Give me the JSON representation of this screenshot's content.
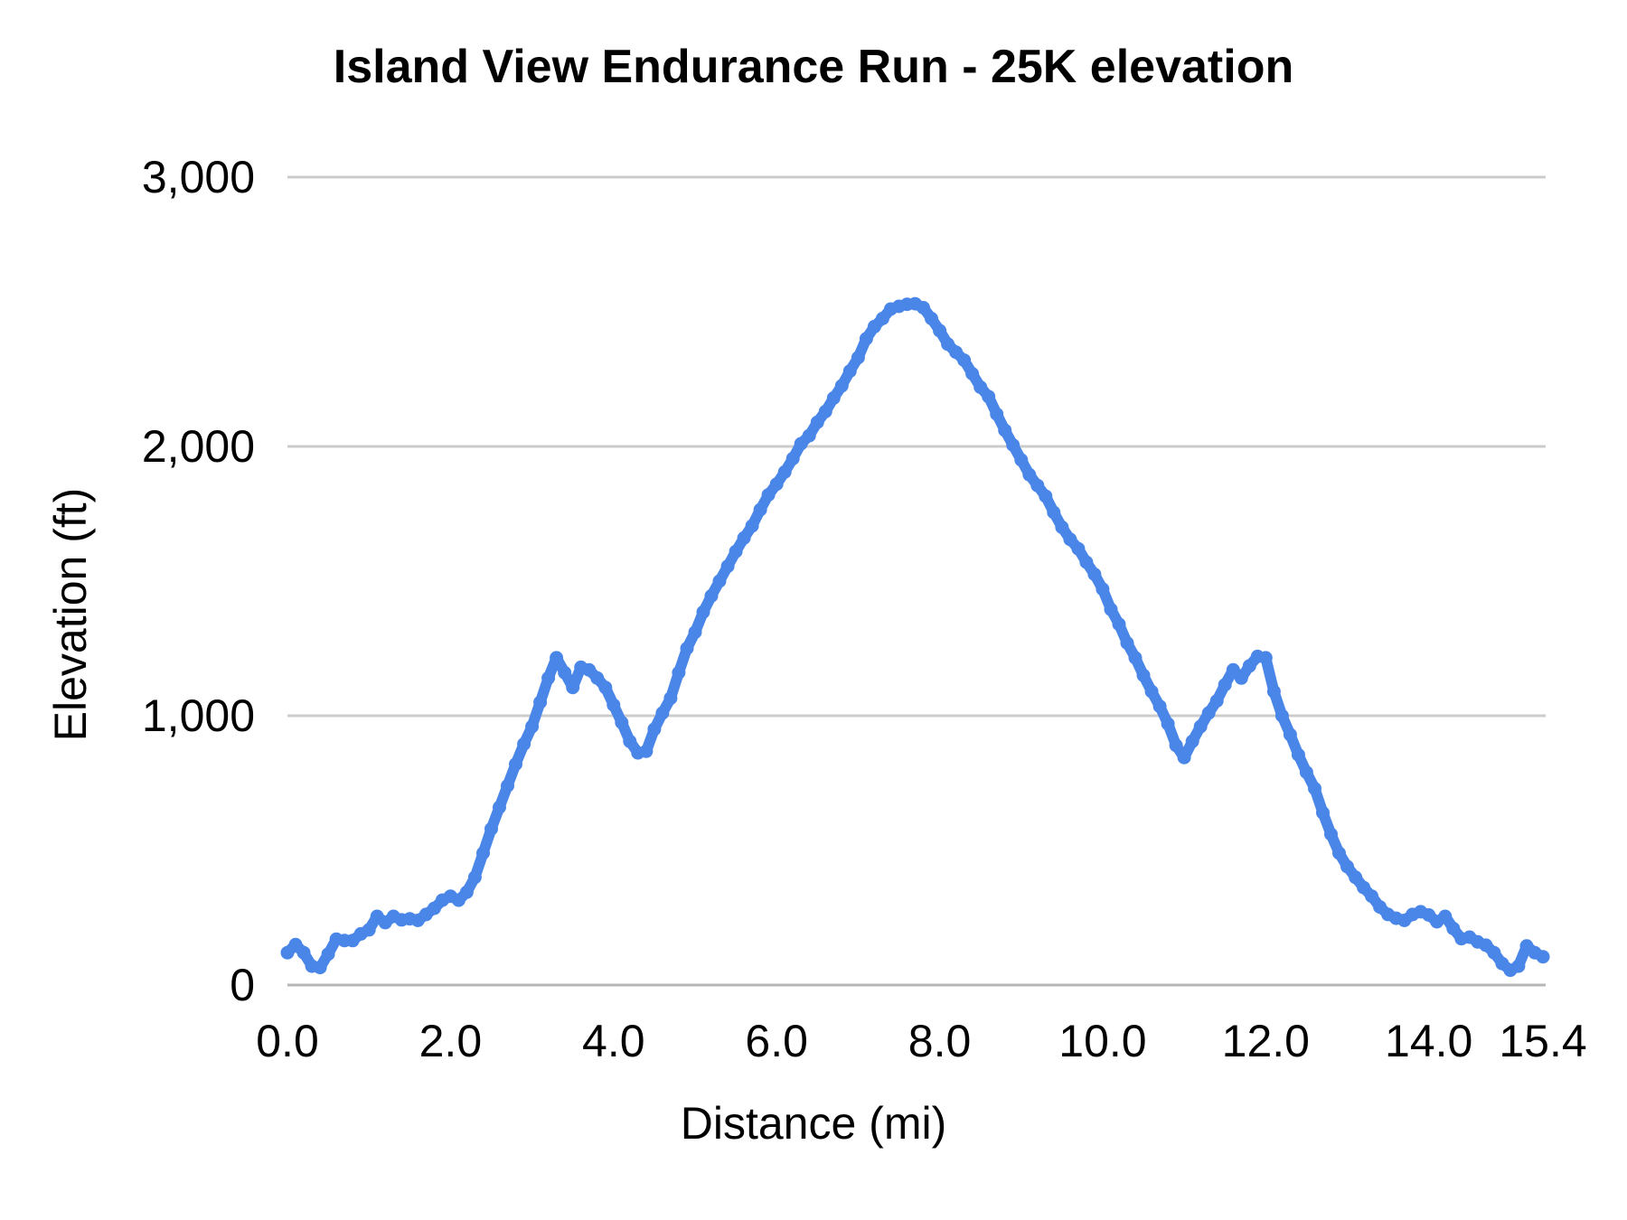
{
  "chart": {
    "title": "Island View Endurance Run - 25K elevation",
    "xlabel": "Distance (mi)",
    "ylabel": "Elevation (ft)"
  },
  "chart_data": {
    "type": "line",
    "title": "Island View Endurance Run - 25K elevation",
    "xlabel": "Distance (mi)",
    "ylabel": "Elevation (ft)",
    "xlim": [
      0,
      15.4
    ],
    "ylim": [
      0,
      3000
    ],
    "x_ticks": [
      0,
      2,
      4,
      6,
      8,
      10,
      12,
      14,
      15.4
    ],
    "x_tick_labels": [
      "0.0",
      "2.0",
      "4.0",
      "6.0",
      "8.0",
      "10.0",
      "12.0",
      "14.0",
      "15.4"
    ],
    "y_ticks": [
      0,
      1000,
      2000,
      3000
    ],
    "y_tick_labels": [
      "0",
      "1,000",
      "2,000",
      "3,000"
    ],
    "grid": "horizontal",
    "grid_color": "#cccccc",
    "axis_color": "#b7b7b7",
    "legend": "none",
    "series": [
      {
        "name": "Elevation",
        "color": "#4a86e8",
        "marker": "circle",
        "x_start": 0,
        "x_step": 0.1,
        "values": [
          120,
          150,
          120,
          70,
          65,
          115,
          170,
          165,
          165,
          190,
          205,
          255,
          232,
          255,
          242,
          246,
          240,
          262,
          285,
          315,
          330,
          315,
          345,
          400,
          490,
          580,
          660,
          740,
          820,
          895,
          960,
          1050,
          1140,
          1215,
          1160,
          1105,
          1180,
          1170,
          1140,
          1105,
          1040,
          975,
          905,
          862,
          868,
          950,
          1010,
          1065,
          1160,
          1250,
          1310,
          1385,
          1445,
          1500,
          1555,
          1610,
          1660,
          1705,
          1765,
          1820,
          1860,
          1905,
          1955,
          2010,
          2040,
          2090,
          2130,
          2180,
          2225,
          2280,
          2330,
          2400,
          2445,
          2475,
          2510,
          2520,
          2528,
          2530,
          2515,
          2475,
          2430,
          2380,
          2350,
          2320,
          2270,
          2220,
          2185,
          2120,
          2060,
          2005,
          1950,
          1895,
          1855,
          1815,
          1755,
          1700,
          1655,
          1620,
          1570,
          1525,
          1470,
          1395,
          1340,
          1270,
          1215,
          1150,
          1090,
          1035,
          970,
          890,
          845,
          905,
          960,
          1010,
          1055,
          1115,
          1170,
          1140,
          1185,
          1220,
          1215,
          1090,
          1000,
          930,
          855,
          790,
          730,
          640,
          560,
          490,
          440,
          400,
          362,
          330,
          290,
          262,
          248,
          240,
          262,
          272,
          260,
          235,
          255,
          210,
          172,
          178,
          160,
          148,
          120,
          80,
          55,
          70,
          145,
          120,
          105
        ]
      }
    ]
  }
}
